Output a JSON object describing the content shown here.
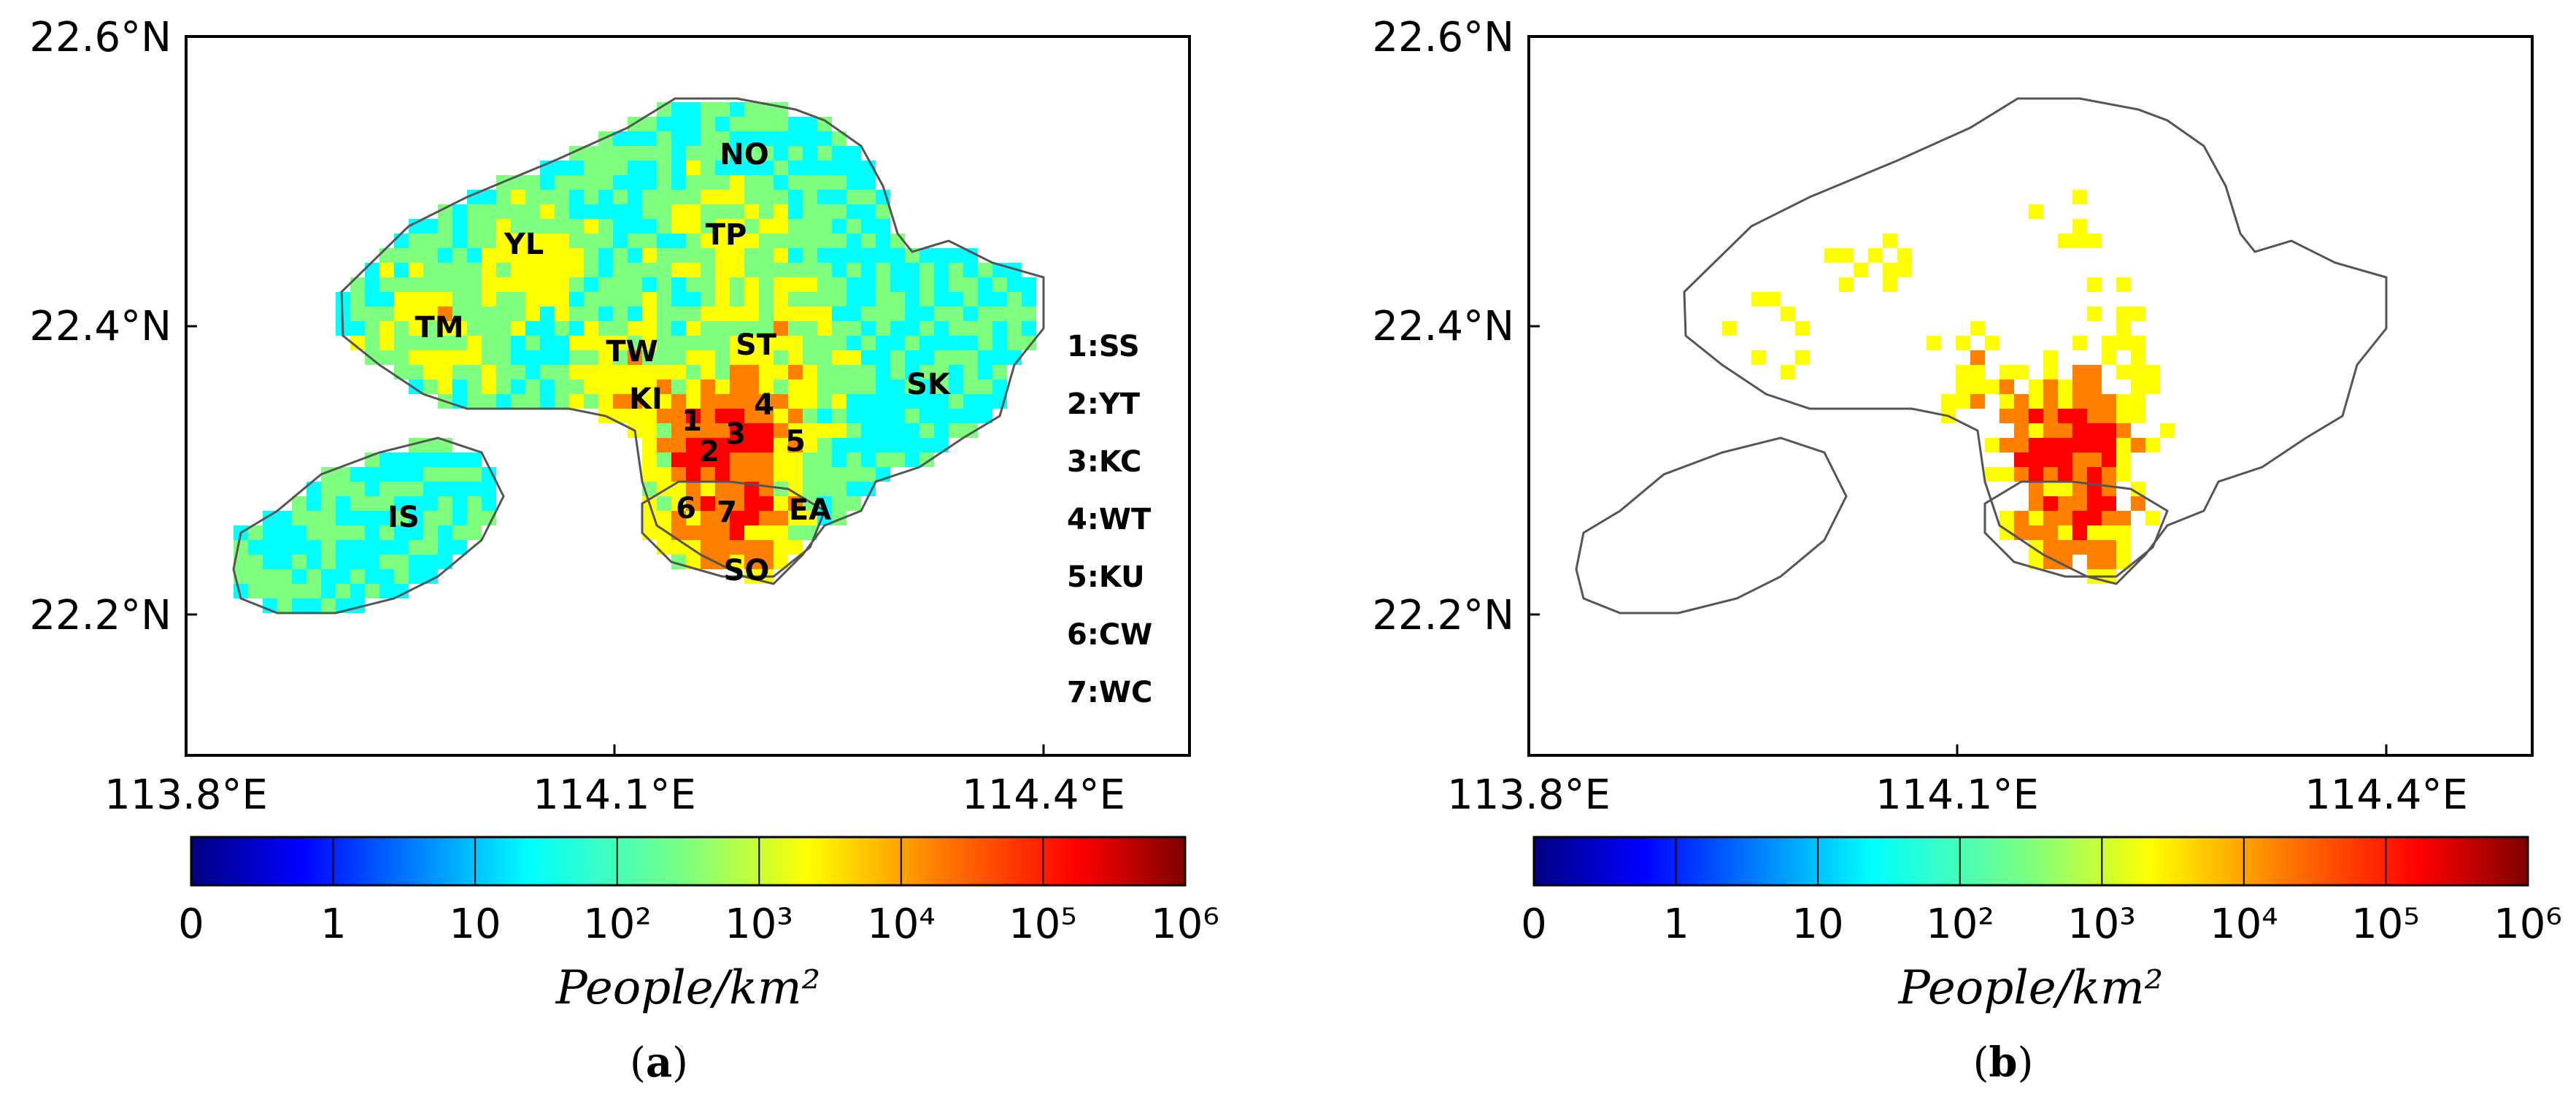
{
  "figure": {
    "panels": [
      {
        "caption_open": "(",
        "caption_letter": "a",
        "caption_close": ")",
        "lat_ticks": [
          "22.6°N",
          "22.4°N",
          "22.2°N"
        ],
        "lon_ticks": [
          "113.8°E",
          "114.1°E",
          "114.4°E"
        ],
        "colorbar": {
          "tick_labels": [
            "0",
            "1",
            "10",
            "10²",
            "10³",
            "10⁴",
            "10⁵",
            "10⁶"
          ],
          "label": "People/km²"
        },
        "district_labels": [
          "NO",
          "TP",
          "YL",
          "TM",
          "TW",
          "ST",
          "KI",
          "SK",
          "IS",
          "EA",
          "SO",
          "1",
          "2",
          "3",
          "4",
          "5",
          "6",
          "7"
        ],
        "legend": [
          "1:SS",
          "2:YT",
          "3:KC",
          "4:WT",
          "5:KU",
          "6:CW",
          "7:WC"
        ]
      },
      {
        "caption_open": "(",
        "caption_letter": "b",
        "caption_close": ")",
        "lat_ticks": [
          "22.6°N",
          "22.4°N",
          "22.2°N"
        ],
        "lon_ticks": [
          "113.8°E",
          "114.1°E",
          "114.4°E"
        ],
        "colorbar": {
          "tick_labels": [
            "0",
            "1",
            "10",
            "10²",
            "10³",
            "10⁴",
            "10⁵",
            "10⁶"
          ],
          "label": "People/km²"
        }
      }
    ],
    "colors": {
      "jet_stops": [
        "#00007f",
        "#0000ff",
        "#007fff",
        "#00ffff",
        "#7fff7f",
        "#ffff00",
        "#ff7f00",
        "#ff0000",
        "#7f0000"
      ],
      "frame": "#000000",
      "coast": "#555555"
    }
  }
}
